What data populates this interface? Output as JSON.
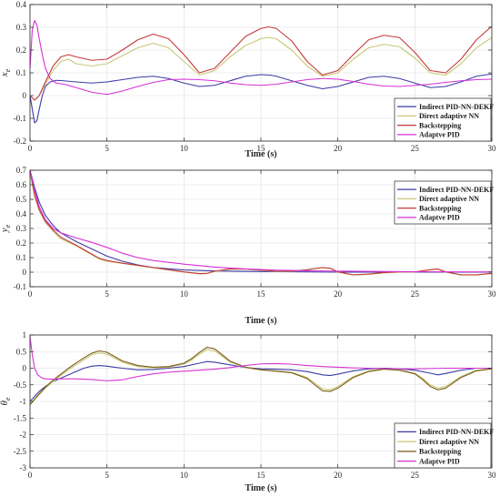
{
  "chart_data": [
    {
      "type": "line",
      "ylabel": "x",
      "ylabel_sub": "e",
      "xlabel": "Time (s)",
      "xlim": [
        0,
        30
      ],
      "ylim": [
        -0.2,
        0.4
      ],
      "xticks": [
        0,
        5,
        10,
        15,
        20,
        25,
        30
      ],
      "yticks": [
        -0.2,
        -0.1,
        0,
        0.1,
        0.2,
        0.3,
        0.4
      ],
      "ytick_labels": [
        "-0.2",
        "-0.1",
        "0",
        "0.1",
        "0.2",
        "0.3",
        "0.4"
      ],
      "grid": true,
      "legend_position": "bottom-right",
      "series": [
        {
          "name": "Indirect PID-NN-DEKF",
          "color": "#3b3ba6",
          "x": [
            0,
            0.15,
            0.3,
            0.45,
            0.6,
            0.8,
            1,
            1.3,
            1.7,
            2.2,
            3,
            4,
            5,
            6,
            7,
            8,
            9,
            10,
            11,
            12,
            13,
            14,
            15,
            15.6,
            16,
            17,
            18,
            19,
            20,
            21,
            22,
            23,
            24,
            25,
            26,
            27,
            28,
            29,
            30
          ],
          "y": [
            0,
            -0.06,
            -0.12,
            -0.11,
            -0.06,
            0.0,
            0.04,
            0.06,
            0.067,
            0.065,
            0.06,
            0.055,
            0.06,
            0.07,
            0.08,
            0.085,
            0.075,
            0.055,
            0.04,
            0.045,
            0.065,
            0.085,
            0.092,
            0.09,
            0.085,
            0.065,
            0.045,
            0.03,
            0.04,
            0.06,
            0.08,
            0.085,
            0.075,
            0.055,
            0.035,
            0.04,
            0.06,
            0.085,
            0.095
          ]
        },
        {
          "name": "Direct adaptive NN",
          "color": "#c8c878",
          "x": [
            0,
            0.3,
            0.6,
            1,
            1.5,
            2,
            2.5,
            3,
            4,
            5,
            6,
            7,
            8,
            9,
            10,
            11,
            12,
            13,
            14,
            15,
            15.5,
            16,
            17,
            18,
            19,
            20,
            21,
            22,
            23,
            24,
            25,
            26,
            27,
            28,
            29,
            30
          ],
          "y": [
            0,
            -0.02,
            0.0,
            0.05,
            0.11,
            0.15,
            0.16,
            0.14,
            0.13,
            0.14,
            0.175,
            0.21,
            0.23,
            0.21,
            0.15,
            0.09,
            0.11,
            0.17,
            0.22,
            0.25,
            0.255,
            0.25,
            0.2,
            0.13,
            0.085,
            0.1,
            0.16,
            0.21,
            0.225,
            0.215,
            0.165,
            0.1,
            0.09,
            0.14,
            0.21,
            0.255
          ]
        },
        {
          "name": "Backstepping",
          "color": "#c43a3a",
          "x": [
            0,
            0.3,
            0.6,
            1,
            1.5,
            2,
            2.5,
            3,
            4,
            5,
            6,
            7,
            8,
            9,
            10,
            11,
            12,
            13,
            14,
            15,
            15.5,
            16,
            17,
            18,
            19,
            20,
            21,
            22,
            23,
            24,
            25,
            26,
            27,
            28,
            29,
            30
          ],
          "y": [
            0,
            -0.02,
            0.0,
            0.06,
            0.13,
            0.17,
            0.18,
            0.17,
            0.155,
            0.16,
            0.2,
            0.245,
            0.27,
            0.25,
            0.18,
            0.1,
            0.12,
            0.19,
            0.26,
            0.295,
            0.302,
            0.295,
            0.24,
            0.15,
            0.09,
            0.11,
            0.18,
            0.245,
            0.265,
            0.255,
            0.19,
            0.11,
            0.1,
            0.16,
            0.245,
            0.305
          ]
        },
        {
          "name": "Adaptve PID",
          "color": "#d630d6",
          "x": [
            0,
            0.15,
            0.3,
            0.45,
            0.6,
            0.8,
            1,
            1.3,
            1.7,
            2.2,
            3,
            4,
            5,
            6,
            7,
            8,
            9,
            10,
            11,
            12,
            13,
            14,
            15,
            16,
            17,
            18,
            19,
            20,
            21,
            22,
            23,
            24,
            25,
            26,
            27,
            28,
            29,
            30
          ],
          "y": [
            0.12,
            0.29,
            0.33,
            0.31,
            0.25,
            0.18,
            0.12,
            0.075,
            0.055,
            0.05,
            0.035,
            0.015,
            0.005,
            0.02,
            0.04,
            0.058,
            0.07,
            0.072,
            0.07,
            0.065,
            0.055,
            0.048,
            0.045,
            0.05,
            0.06,
            0.07,
            0.075,
            0.072,
            0.062,
            0.05,
            0.042,
            0.04,
            0.045,
            0.05,
            0.058,
            0.065,
            0.07,
            0.072
          ]
        }
      ]
    },
    {
      "type": "line",
      "ylabel": "y",
      "ylabel_sub": "e",
      "xlabel": "Time (s)",
      "xlim": [
        0,
        30
      ],
      "ylim": [
        -0.1,
        0.7
      ],
      "xticks": [
        0,
        5,
        10,
        15,
        20,
        25,
        30
      ],
      "yticks": [
        -0.1,
        0,
        0.1,
        0.2,
        0.3,
        0.4,
        0.5,
        0.6,
        0.7
      ],
      "ytick_labels": [
        "-0.1",
        "0",
        "0.1",
        "0.2",
        "0.3",
        "0.4",
        "0.5",
        "0.6",
        "0.7"
      ],
      "grid": true,
      "legend_position": "top-right",
      "series": [
        {
          "name": "Indirect PID-NN-DEKF",
          "color": "#3b3ba6",
          "x": [
            0,
            0.3,
            0.6,
            1,
            1.5,
            2,
            3,
            4,
            5,
            6,
            7,
            8,
            10,
            12,
            15,
            20,
            25,
            30
          ],
          "y": [
            0.7,
            0.58,
            0.48,
            0.39,
            0.32,
            0.27,
            0.21,
            0.16,
            0.11,
            0.075,
            0.05,
            0.032,
            0.015,
            0.008,
            0.004,
            0.0,
            0.0,
            0.0
          ]
        },
        {
          "name": "Direct adaptive NN",
          "color": "#c8c878",
          "x": [
            0,
            0.3,
            0.6,
            1,
            1.5,
            2,
            3,
            4,
            4.5,
            5,
            6,
            7,
            8,
            9,
            10,
            11,
            11.5,
            12,
            13,
            14,
            15,
            16,
            17,
            18,
            19,
            19.5,
            20,
            21,
            22,
            23,
            24,
            25,
            26,
            26.5,
            27,
            28,
            29,
            30
          ],
          "y": [
            0.68,
            0.52,
            0.42,
            0.34,
            0.28,
            0.23,
            0.18,
            0.12,
            0.09,
            0.075,
            0.06,
            0.045,
            0.03,
            0.015,
            0.0,
            -0.012,
            -0.01,
            0.005,
            0.02,
            0.02,
            0.012,
            0.005,
            0.005,
            0.015,
            0.03,
            0.025,
            0.0,
            -0.02,
            -0.015,
            -0.005,
            0.0,
            0.0,
            0.015,
            0.02,
            0.0,
            -0.02,
            -0.02,
            -0.01
          ]
        },
        {
          "name": "Backstepping",
          "color": "#c43a3a",
          "x": [
            0,
            0.3,
            0.6,
            1,
            1.5,
            2,
            3,
            4,
            4.5,
            5,
            6,
            7,
            8,
            9,
            10,
            11,
            11.5,
            12,
            13,
            14,
            15,
            16,
            17,
            18,
            19,
            19.5,
            20,
            21,
            22,
            23,
            24,
            25,
            26,
            26.5,
            27,
            28,
            29,
            30
          ],
          "y": [
            0.7,
            0.53,
            0.43,
            0.35,
            0.29,
            0.24,
            0.185,
            0.125,
            0.095,
            0.08,
            0.062,
            0.047,
            0.032,
            0.017,
            0.002,
            -0.01,
            -0.008,
            0.007,
            0.022,
            0.022,
            0.014,
            0.007,
            0.007,
            0.017,
            0.032,
            0.027,
            0.002,
            -0.018,
            -0.013,
            -0.003,
            0.002,
            0.002,
            0.017,
            0.022,
            0.002,
            -0.018,
            -0.018,
            -0.008
          ]
        },
        {
          "name": "Adaptve PID",
          "color": "#d630d6",
          "x": [
            0,
            0.3,
            0.6,
            1,
            1.5,
            2,
            3,
            4,
            5,
            6,
            7,
            8,
            10,
            12,
            14,
            16,
            18,
            20,
            25,
            30
          ],
          "y": [
            0.7,
            0.56,
            0.45,
            0.36,
            0.3,
            0.27,
            0.235,
            0.205,
            0.17,
            0.13,
            0.1,
            0.08,
            0.055,
            0.035,
            0.022,
            0.014,
            0.01,
            0.007,
            0.003,
            0.002
          ]
        }
      ]
    },
    {
      "type": "line",
      "ylabel": "θ",
      "ylabel_sub": "e",
      "xlabel": "Time (s)",
      "xlim": [
        0,
        30
      ],
      "ylim": [
        -3,
        1
      ],
      "xticks": [
        0,
        5,
        10,
        15,
        20,
        25,
        30
      ],
      "yticks": [
        -3,
        -2.5,
        -2,
        -1.5,
        -1,
        -0.5,
        0,
        0.5,
        1
      ],
      "ytick_labels": [
        "-3",
        "-2.5",
        "-2",
        "-1.5",
        "-1",
        "-0.5",
        "0",
        "0.5",
        "1"
      ],
      "grid": true,
      "legend_position": "bottom-right",
      "series": [
        {
          "name": "Indirect PID-NN-DEKF",
          "color": "#3b3ba6",
          "x": [
            0,
            0.3,
            0.6,
            1,
            1.5,
            2,
            2.5,
            3,
            3.5,
            4,
            4.5,
            5,
            6,
            7,
            8,
            9,
            10,
            11,
            11.5,
            12,
            13,
            14,
            15,
            16,
            17,
            18,
            19,
            19.5,
            20,
            21,
            22,
            23,
            24,
            25,
            26,
            26.5,
            27,
            28,
            29,
            30
          ],
          "y": [
            -1.0,
            -0.85,
            -0.7,
            -0.55,
            -0.4,
            -0.3,
            -0.2,
            -0.1,
            0.0,
            0.06,
            0.08,
            0.06,
            0.0,
            -0.05,
            -0.04,
            0.0,
            0.05,
            0.15,
            0.2,
            0.18,
            0.1,
            0.02,
            -0.02,
            -0.03,
            -0.05,
            -0.1,
            -0.2,
            -0.22,
            -0.18,
            -0.08,
            -0.02,
            0.0,
            -0.02,
            -0.06,
            -0.15,
            -0.2,
            -0.16,
            -0.06,
            0.0,
            0.0
          ]
        },
        {
          "name": "Direct adaptive NN",
          "color": "#c8c878",
          "x": [
            0,
            0.3,
            0.6,
            1,
            1.5,
            2,
            2.5,
            3,
            3.5,
            4,
            4.5,
            5,
            5.5,
            6,
            7,
            8,
            9,
            10,
            10.5,
            11,
            11.5,
            12,
            12.5,
            13,
            14,
            15,
            16,
            17,
            18,
            18.5,
            19,
            19.5,
            20,
            21,
            22,
            23,
            24,
            25,
            25.5,
            26,
            26.5,
            27,
            28,
            29,
            30
          ],
          "y": [
            -1.1,
            -0.95,
            -0.8,
            -0.6,
            -0.4,
            -0.22,
            -0.05,
            0.1,
            0.25,
            0.4,
            0.46,
            0.42,
            0.3,
            0.18,
            0.05,
            0.01,
            0.03,
            0.12,
            0.25,
            0.42,
            0.56,
            0.52,
            0.35,
            0.18,
            0.02,
            -0.05,
            -0.08,
            -0.12,
            -0.28,
            -0.45,
            -0.62,
            -0.65,
            -0.55,
            -0.25,
            -0.08,
            -0.02,
            -0.05,
            -0.15,
            -0.3,
            -0.5,
            -0.6,
            -0.55,
            -0.25,
            -0.06,
            -0.01
          ]
        },
        {
          "name": "Backstepping",
          "color": "#7a5a18",
          "x": [
            0,
            0.3,
            0.6,
            1,
            1.5,
            2,
            2.5,
            3,
            3.5,
            4,
            4.5,
            5,
            5.5,
            6,
            7,
            8,
            9,
            10,
            10.5,
            11,
            11.5,
            12,
            12.5,
            13,
            14,
            15,
            16,
            17,
            18,
            18.5,
            19,
            19.5,
            20,
            21,
            22,
            23,
            24,
            25,
            25.5,
            26,
            26.5,
            27,
            28,
            29,
            30
          ],
          "y": [
            -1.1,
            -0.93,
            -0.77,
            -0.57,
            -0.36,
            -0.18,
            0.0,
            0.16,
            0.31,
            0.45,
            0.52,
            0.48,
            0.35,
            0.22,
            0.08,
            0.03,
            0.05,
            0.15,
            0.29,
            0.47,
            0.63,
            0.58,
            0.4,
            0.21,
            0.03,
            -0.05,
            -0.09,
            -0.14,
            -0.31,
            -0.5,
            -0.68,
            -0.7,
            -0.6,
            -0.28,
            -0.1,
            -0.03,
            -0.06,
            -0.17,
            -0.34,
            -0.55,
            -0.65,
            -0.6,
            -0.28,
            -0.08,
            -0.02
          ]
        },
        {
          "name": "Adaptve PID",
          "color": "#d630d6",
          "x": [
            0,
            0.15,
            0.3,
            0.5,
            0.8,
            1,
            1.5,
            2,
            3,
            4,
            5,
            6,
            7,
            8,
            9,
            10,
            11,
            12,
            13,
            14,
            15,
            16,
            17,
            18,
            19,
            20,
            21,
            22,
            23,
            24,
            25,
            26,
            27,
            28,
            29,
            30
          ],
          "y": [
            0.95,
            0.4,
            0.0,
            -0.2,
            -0.3,
            -0.32,
            -0.33,
            -0.32,
            -0.32,
            -0.34,
            -0.38,
            -0.35,
            -0.25,
            -0.17,
            -0.12,
            -0.09,
            -0.06,
            -0.03,
            0.02,
            0.08,
            0.13,
            0.14,
            0.12,
            0.08,
            0.05,
            0.03,
            0.01,
            0.0,
            -0.01,
            -0.02,
            -0.02,
            -0.01,
            0.0,
            0.0,
            0.0,
            0.0
          ]
        }
      ]
    }
  ]
}
